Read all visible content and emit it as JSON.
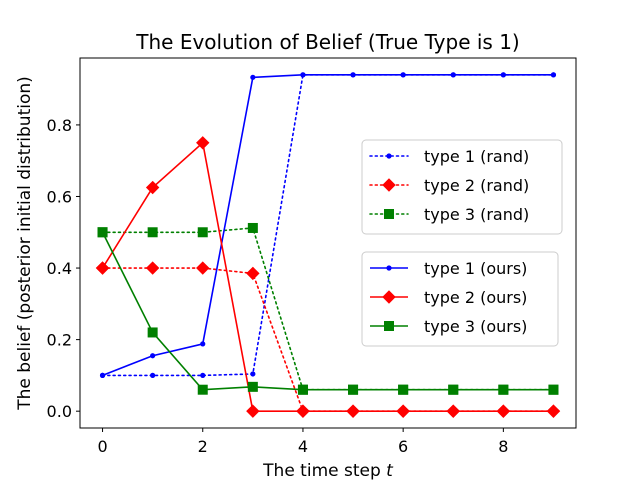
{
  "chart_data": {
    "type": "line",
    "title": "The Evolution of Belief (True Type is 1)",
    "xlabel_prefix": "The time step ",
    "xlabel_var": "t",
    "ylabel": "The belief (posterior initial distribution)",
    "x": [
      0,
      1,
      2,
      3,
      4,
      5,
      6,
      7,
      8,
      9
    ],
    "xlim": [
      -0.45,
      9.45
    ],
    "ylim": [
      -0.047,
      0.987
    ],
    "xticks": [
      0,
      2,
      4,
      6,
      8
    ],
    "yticks": [
      0.0,
      0.2,
      0.4,
      0.6,
      0.8
    ],
    "grid": false,
    "series": [
      {
        "name": "type 1 (rand)",
        "color": "#0000ff",
        "linestyle": "dotted",
        "marker": "point",
        "values": [
          0.1,
          0.1,
          0.1,
          0.104,
          0.94,
          0.94,
          0.94,
          0.94,
          0.94,
          0.94
        ]
      },
      {
        "name": "type 2 (rand)",
        "color": "#ff0000",
        "linestyle": "dotted",
        "marker": "diamond",
        "values": [
          0.4,
          0.4,
          0.4,
          0.385,
          0.0,
          0.0,
          0.0,
          0.0,
          0.0,
          0.0
        ]
      },
      {
        "name": "type 3 (rand)",
        "color": "#008000",
        "linestyle": "dotted",
        "marker": "square",
        "values": [
          0.5,
          0.5,
          0.5,
          0.512,
          0.06,
          0.06,
          0.06,
          0.06,
          0.06,
          0.06
        ]
      },
      {
        "name": "type 1 (ours)",
        "color": "#0000ff",
        "linestyle": "solid",
        "marker": "point",
        "values": [
          0.1,
          0.155,
          0.188,
          0.933,
          0.94,
          0.94,
          0.94,
          0.94,
          0.94,
          0.94
        ]
      },
      {
        "name": "type 2 (ours)",
        "color": "#ff0000",
        "linestyle": "solid",
        "marker": "diamond",
        "values": [
          0.4,
          0.625,
          0.75,
          0.0,
          0.0,
          0.0,
          0.0,
          0.0,
          0.0,
          0.0
        ]
      },
      {
        "name": "type 3 (ours)",
        "color": "#008000",
        "linestyle": "solid",
        "marker": "square",
        "values": [
          0.5,
          0.22,
          0.06,
          0.068,
          0.06,
          0.06,
          0.06,
          0.06,
          0.06,
          0.06
        ]
      }
    ],
    "legends": [
      {
        "placement": "center-right",
        "entries": [
          0,
          1,
          2
        ]
      },
      {
        "placement": "center-right-lower",
        "entries": [
          3,
          4,
          5
        ]
      }
    ]
  }
}
